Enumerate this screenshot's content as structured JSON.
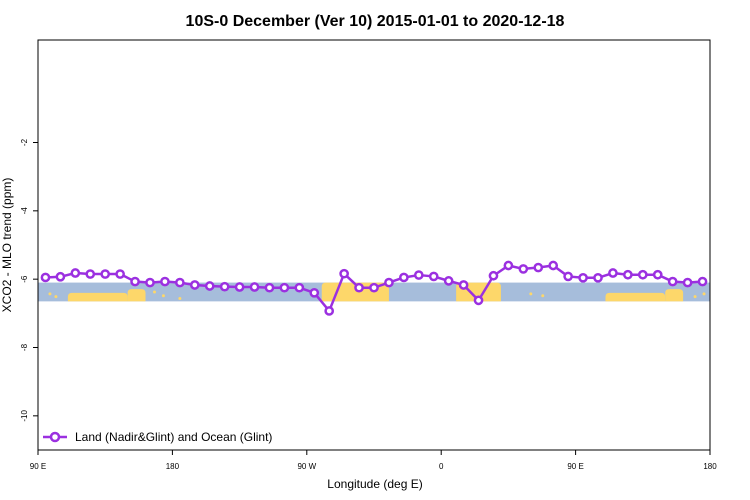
{
  "chart_data": {
    "type": "line",
    "title": "10S-0 December (Ver 10)   2015-01-01 to 2020-12-18",
    "xlabel": "Longitude (deg E)",
    "ylabel": "XCO2 - MLO trend (ppm)",
    "xlim": [
      0,
      450
    ],
    "ylim": [
      -11,
      1
    ],
    "x_ticks": [
      {
        "value": 0,
        "label": "90 E"
      },
      {
        "value": 90,
        "label": "180"
      },
      {
        "value": 180,
        "label": "90 W"
      },
      {
        "value": 270,
        "label": "0"
      },
      {
        "value": 360,
        "label": "90 E"
      },
      {
        "value": 450,
        "label": "180"
      }
    ],
    "y_ticks": [
      {
        "value": -2,
        "label": "-2"
      },
      {
        "value": -4,
        "label": "-4"
      },
      {
        "value": -6,
        "label": "-6"
      },
      {
        "value": -8,
        "label": "-8"
      },
      {
        "value": -10,
        "label": "-10"
      }
    ],
    "map_strip": {
      "y_min": -6.65,
      "y_max": -6.1,
      "ocean_color": "#a6bddb",
      "land_color": "#fdd76a"
    },
    "series": [
      {
        "name": "Land (Nadir&Glint) and Ocean (Glint)",
        "color": "#9b30e0",
        "x": [
          5,
          15,
          25,
          35,
          45,
          55,
          65,
          75,
          85,
          95,
          105,
          115,
          125,
          135,
          145,
          155,
          165,
          175,
          185,
          195,
          205,
          215,
          225,
          235,
          245,
          255,
          265,
          275,
          285,
          295,
          305,
          315,
          325,
          335,
          345,
          355,
          365,
          375,
          385,
          395,
          405,
          415,
          425,
          435,
          445
        ],
        "y": [
          -5.95,
          -5.93,
          -5.82,
          -5.85,
          -5.85,
          -5.85,
          -6.07,
          -6.1,
          -6.07,
          -6.1,
          -6.17,
          -6.2,
          -6.22,
          -6.23,
          -6.23,
          -6.25,
          -6.25,
          -6.25,
          -6.4,
          -6.93,
          -5.84,
          -6.25,
          -6.25,
          -6.1,
          -5.95,
          -5.88,
          -5.92,
          -6.05,
          -6.17,
          -6.62,
          -5.9,
          -5.6,
          -5.7,
          -5.66,
          -5.6,
          -5.92,
          -5.96,
          -5.96,
          -5.82,
          -5.87,
          -5.87,
          -5.87,
          -6.07,
          -6.1,
          -6.07
        ]
      }
    ],
    "legend_position": "bottom-left",
    "grid": false
  }
}
